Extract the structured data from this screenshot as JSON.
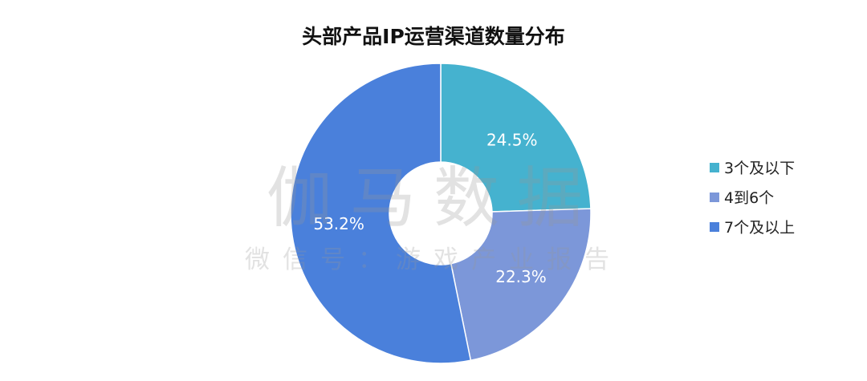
{
  "chart_data": {
    "type": "pie",
    "donut": true,
    "title": "头部产品IP运营渠道数量分布",
    "categories": [
      "3个及以下",
      "4到6个",
      "7个及以上"
    ],
    "values": [
      24.5,
      22.3,
      53.2
    ],
    "labels": [
      "24.5%",
      "22.3%",
      "53.2%"
    ],
    "colors": [
      "#45b2cf",
      "#7c97d9",
      "#4a80db"
    ],
    "legend": "right"
  },
  "watermark": {
    "main": "伽马数据",
    "sub": "微信号：游戏产业报告"
  }
}
